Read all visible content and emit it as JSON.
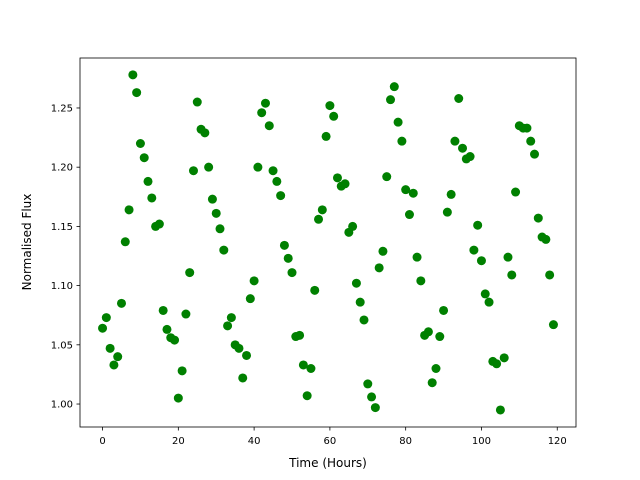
{
  "chart_data": {
    "type": "scatter",
    "xlabel": "Time (Hours)",
    "ylabel": "Normalised Flux",
    "color": "#008000",
    "grid": false,
    "xlim": [
      -5.95,
      124.95
    ],
    "ylim": [
      0.9806,
      1.2922
    ],
    "xticks": [
      0,
      20,
      40,
      60,
      80,
      100,
      120
    ],
    "yticks": [
      {
        "value": 1.0,
        "label": "1.00"
      },
      1.05,
      {
        "value": 1.1,
        "label": "1.10"
      },
      1.15,
      {
        "value": 1.2,
        "label": "1.20"
      },
      1.25
    ],
    "x": [
      0,
      1,
      2,
      3,
      4,
      5,
      6,
      7,
      8,
      9,
      10,
      11,
      12,
      13,
      14,
      15,
      16,
      17,
      18,
      19,
      20,
      21,
      22,
      23,
      24,
      25,
      26,
      27,
      28,
      29,
      30,
      31,
      32,
      33,
      34,
      35,
      36,
      37,
      38,
      39,
      40,
      41,
      42,
      43,
      44,
      45,
      46,
      47,
      48,
      49,
      50,
      51,
      52,
      53,
      54,
      55,
      56,
      57,
      58,
      59,
      60,
      61,
      62,
      63,
      64,
      65,
      66,
      67,
      68,
      69,
      70,
      71,
      72,
      73,
      74,
      75,
      76,
      77,
      78,
      79,
      80,
      81,
      82,
      83,
      84,
      85,
      86,
      87,
      88,
      89,
      90,
      91,
      92,
      93,
      94,
      95,
      96,
      97,
      98,
      99,
      100,
      101,
      102,
      103,
      104,
      105,
      106,
      107,
      108,
      109,
      110,
      111,
      112,
      113,
      114,
      115,
      116,
      117,
      118,
      119
    ],
    "values": [
      1.064,
      1.073,
      1.047,
      1.033,
      1.04,
      1.085,
      1.137,
      1.164,
      1.278,
      1.263,
      1.22,
      1.208,
      1.188,
      1.174,
      1.15,
      1.152,
      1.079,
      1.063,
      1.056,
      1.054,
      1.005,
      1.028,
      1.076,
      1.111,
      1.197,
      1.255,
      1.232,
      1.229,
      1.2,
      1.173,
      1.161,
      1.148,
      1.13,
      1.066,
      1.073,
      1.05,
      1.047,
      1.022,
      1.041,
      1.089,
      1.104,
      1.2,
      1.246,
      1.254,
      1.235,
      1.197,
      1.188,
      1.176,
      1.134,
      1.123,
      1.111,
      1.057,
      1.058,
      1.033,
      1.007,
      1.03,
      1.096,
      1.156,
      1.164,
      1.226,
      1.252,
      1.243,
      1.191,
      1.184,
      1.186,
      1.145,
      1.15,
      1.102,
      1.086,
      1.071,
      1.017,
      1.006,
      0.997,
      1.115,
      1.129,
      1.192,
      1.257,
      1.268,
      1.238,
      1.222,
      1.181,
      1.16,
      1.178,
      1.124,
      1.104,
      1.058,
      1.061,
      1.018,
      1.03,
      1.057,
      1.079,
      1.162,
      1.177,
      1.222,
      1.258,
      1.216,
      1.207,
      1.209,
      1.13,
      1.151,
      1.121,
      1.093,
      1.086,
      1.036,
      1.034,
      0.995,
      1.039,
      1.124,
      1.109,
      1.179,
      1.235,
      1.233,
      1.233,
      1.222,
      1.211,
      1.157,
      1.141,
      1.139,
      1.109,
      1.067
    ]
  }
}
